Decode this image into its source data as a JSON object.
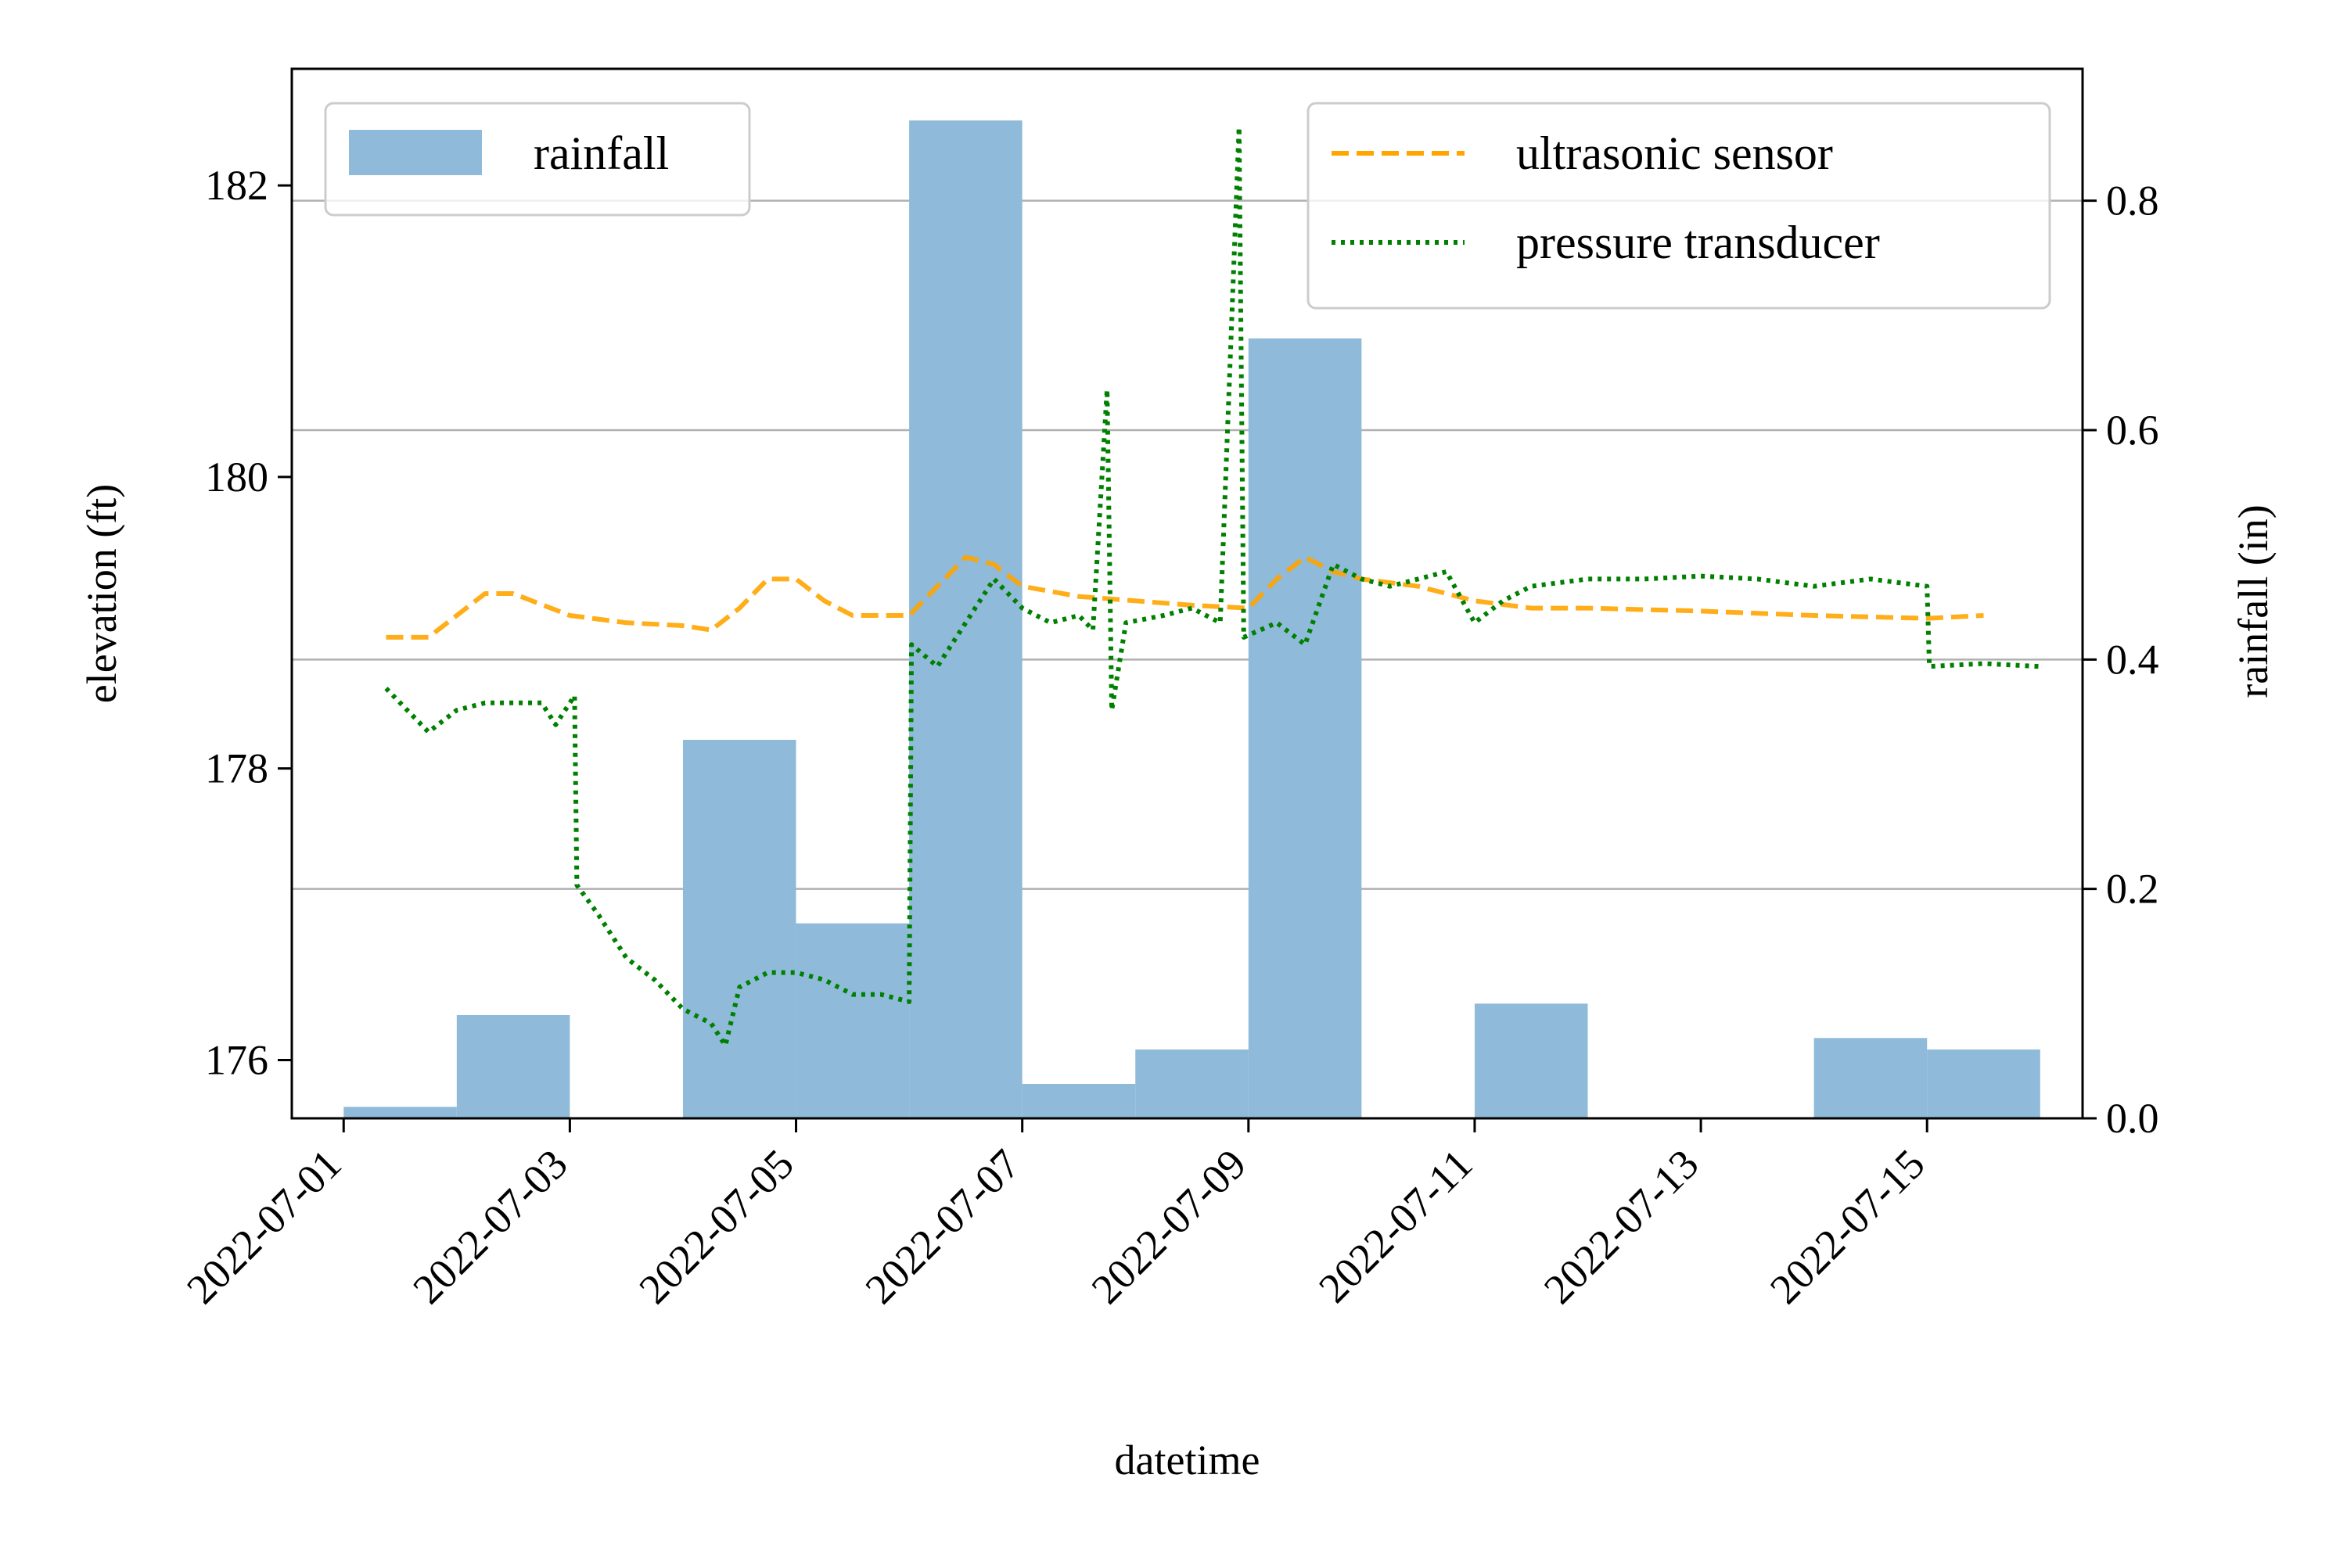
{
  "chart_data": {
    "type": "bar+line",
    "title": "",
    "xlabel": "datetime",
    "ylabel_left": "elevation (ft)",
    "ylabel_right": "rainfall (in)",
    "xlim": [
      "2022-06-30T13:00",
      "2022-07-16T09:00"
    ],
    "ylim_left": [
      175.6,
      182.8
    ],
    "ylim_right": [
      0.0,
      0.915
    ],
    "x_ticks": [
      "2022-07-01",
      "2022-07-03",
      "2022-07-05",
      "2022-07-07",
      "2022-07-09",
      "2022-07-11",
      "2022-07-13",
      "2022-07-15"
    ],
    "y_ticks_left": [
      "176",
      "178",
      "180",
      "182"
    ],
    "y_ticks_right": [
      "0.0",
      "0.2",
      "0.4",
      "0.6",
      "0.8"
    ],
    "grid": "right-axis horizontal",
    "legends": [
      {
        "location": "upper-left",
        "entries": [
          "rainfall"
        ]
      },
      {
        "location": "upper-right",
        "entries": [
          "ultrasonic sensor",
          "pressure transducer"
        ]
      }
    ],
    "rainfall": {
      "name": "rainfall",
      "color": "#8fbad9",
      "bar_width_days": 1,
      "dates": [
        "2022-07-01",
        "2022-07-02",
        "2022-07-03",
        "2022-07-04",
        "2022-07-05",
        "2022-07-06",
        "2022-07-07",
        "2022-07-08",
        "2022-07-09",
        "2022-07-10",
        "2022-07-11",
        "2022-07-12",
        "2022-07-13",
        "2022-07-14",
        "2022-07-15"
      ],
      "values": [
        0.01,
        0.09,
        0.0,
        0.33,
        0.17,
        0.87,
        0.03,
        0.06,
        0.68,
        0.0,
        0.1,
        0.0,
        0.0,
        0.07,
        0.06
      ]
    },
    "series": [
      {
        "name": "ultrasonic sensor",
        "color": "#ffa500",
        "style": "dashed",
        "points": [
          [
            "2022-07-01T09:00",
            178.9
          ],
          [
            "2022-07-01T18:00",
            178.9
          ],
          [
            "2022-07-02T00:00",
            179.05
          ],
          [
            "2022-07-02T06:00",
            179.2
          ],
          [
            "2022-07-02T12:00",
            179.2
          ],
          [
            "2022-07-03T00:00",
            179.05
          ],
          [
            "2022-07-03T12:00",
            179.0
          ],
          [
            "2022-07-04T00:00",
            178.98
          ],
          [
            "2022-07-04T06:00",
            178.95
          ],
          [
            "2022-07-04T12:00",
            179.1
          ],
          [
            "2022-07-04T18:00",
            179.3
          ],
          [
            "2022-07-05T00:00",
            179.3
          ],
          [
            "2022-07-05T06:00",
            179.15
          ],
          [
            "2022-07-05T12:00",
            179.05
          ],
          [
            "2022-07-06T00:00",
            179.05
          ],
          [
            "2022-07-06T06:00",
            179.25
          ],
          [
            "2022-07-06T12:00",
            179.45
          ],
          [
            "2022-07-06T18:00",
            179.4
          ],
          [
            "2022-07-07T00:00",
            179.25
          ],
          [
            "2022-07-07T12:00",
            179.18
          ],
          [
            "2022-07-08T00:00",
            179.15
          ],
          [
            "2022-07-08T12:00",
            179.12
          ],
          [
            "2022-07-09T00:00",
            179.1
          ],
          [
            "2022-07-09T06:00",
            179.3
          ],
          [
            "2022-07-09T12:00",
            179.45
          ],
          [
            "2022-07-09T18:00",
            179.35
          ],
          [
            "2022-07-10T00:00",
            179.3
          ],
          [
            "2022-07-10T12:00",
            179.25
          ],
          [
            "2022-07-11T00:00",
            179.15
          ],
          [
            "2022-07-11T12:00",
            179.1
          ],
          [
            "2022-07-12T00:00",
            179.1
          ],
          [
            "2022-07-13T00:00",
            179.08
          ],
          [
            "2022-07-14T00:00",
            179.05
          ],
          [
            "2022-07-15T00:00",
            179.03
          ],
          [
            "2022-07-15T12:00",
            179.05
          ]
        ]
      },
      {
        "name": "pressure transducer",
        "color": "#008000",
        "style": "dotted",
        "points": [
          [
            "2022-07-01T09:00",
            178.55
          ],
          [
            "2022-07-01T15:00",
            178.35
          ],
          [
            "2022-07-01T18:00",
            178.25
          ],
          [
            "2022-07-02T00:00",
            178.4
          ],
          [
            "2022-07-02T06:00",
            178.45
          ],
          [
            "2022-07-02T12:00",
            178.45
          ],
          [
            "2022-07-02T18:00",
            178.45
          ],
          [
            "2022-07-02T21:00",
            178.3
          ],
          [
            "2022-07-03T01:00",
            178.5
          ],
          [
            "2022-07-03T01:30",
            177.2
          ],
          [
            "2022-07-03T06:00",
            177.0
          ],
          [
            "2022-07-03T12:00",
            176.7
          ],
          [
            "2022-07-03T18:00",
            176.55
          ],
          [
            "2022-07-04T00:00",
            176.35
          ],
          [
            "2022-07-04T06:00",
            176.25
          ],
          [
            "2022-07-04T09:00",
            176.1
          ],
          [
            "2022-07-04T12:00",
            176.5
          ],
          [
            "2022-07-04T18:00",
            176.6
          ],
          [
            "2022-07-05T00:00",
            176.6
          ],
          [
            "2022-07-05T06:00",
            176.55
          ],
          [
            "2022-07-05T12:00",
            176.45
          ],
          [
            "2022-07-05T18:00",
            176.45
          ],
          [
            "2022-07-06T00:00",
            176.4
          ],
          [
            "2022-07-06T00:30",
            178.85
          ],
          [
            "2022-07-06T06:00",
            178.7
          ],
          [
            "2022-07-06T12:00",
            179.0
          ],
          [
            "2022-07-06T18:00",
            179.3
          ],
          [
            "2022-07-07T00:00",
            179.1
          ],
          [
            "2022-07-07T06:00",
            179.0
          ],
          [
            "2022-07-07T12:00",
            179.05
          ],
          [
            "2022-07-07T15:00",
            178.95
          ],
          [
            "2022-07-07T18:00",
            180.6
          ],
          [
            "2022-07-07T19:00",
            178.4
          ],
          [
            "2022-07-07T22:00",
            179.0
          ],
          [
            "2022-07-08T06:00",
            179.05
          ],
          [
            "2022-07-08T12:00",
            179.1
          ],
          [
            "2022-07-08T18:00",
            179.0
          ],
          [
            "2022-07-08T22:00",
            182.4
          ],
          [
            "2022-07-08T23:00",
            178.9
          ],
          [
            "2022-07-09T06:00",
            179.0
          ],
          [
            "2022-07-09T12:00",
            178.85
          ],
          [
            "2022-07-09T18:00",
            179.4
          ],
          [
            "2022-07-10T00:00",
            179.3
          ],
          [
            "2022-07-10T06:00",
            179.25
          ],
          [
            "2022-07-10T12:00",
            179.3
          ],
          [
            "2022-07-10T18:00",
            179.35
          ],
          [
            "2022-07-11T00:00",
            179.0
          ],
          [
            "2022-07-11T06:00",
            179.15
          ],
          [
            "2022-07-11T12:00",
            179.25
          ],
          [
            "2022-07-12T00:00",
            179.3
          ],
          [
            "2022-07-12T12:00",
            179.3
          ],
          [
            "2022-07-13T00:00",
            179.32
          ],
          [
            "2022-07-13T12:00",
            179.3
          ],
          [
            "2022-07-14T00:00",
            179.25
          ],
          [
            "2022-07-14T12:00",
            179.3
          ],
          [
            "2022-07-15T00:00",
            179.25
          ],
          [
            "2022-07-15T00:30",
            178.7
          ],
          [
            "2022-07-15T12:00",
            178.72
          ],
          [
            "2022-07-16T00:00",
            178.7
          ]
        ]
      }
    ]
  }
}
